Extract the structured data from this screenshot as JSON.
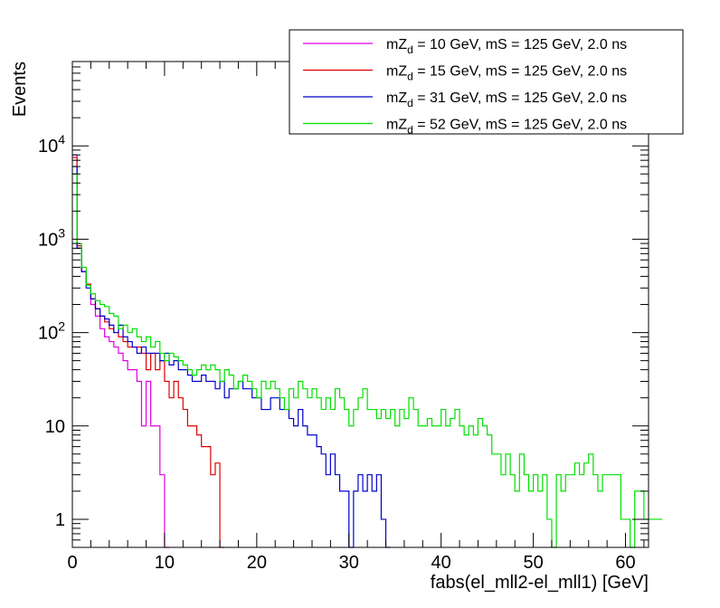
{
  "chart_data": {
    "type": "histogram",
    "title": "",
    "xlabel": "fabs(el_mll2-el_mll1) [GeV]",
    "ylabel": "Events",
    "xlim": [
      0,
      62.5
    ],
    "ylim": [
      0.5,
      80000
    ],
    "yscale": "log",
    "grid": false,
    "legend_position": "top-right",
    "bin_width": 0.5,
    "x_ticks": [
      0,
      10,
      20,
      30,
      40,
      50,
      60
    ],
    "x_tick_labels": [
      "0",
      "10",
      "20",
      "30",
      "40",
      "50",
      "60"
    ],
    "y_ticks": [
      {
        "value": 1,
        "base": "1",
        "exp": ""
      },
      {
        "value": 10,
        "base": "10",
        "exp": ""
      },
      {
        "value": 100,
        "base": "10",
        "exp": "2"
      },
      {
        "value": 1000,
        "base": "10",
        "exp": "3"
      },
      {
        "value": 10000,
        "base": "10",
        "exp": "4"
      }
    ],
    "series": [
      {
        "name": "mZ_d = 10 GeV, mS = 125 GeV, 2.0 ns",
        "legend_main": "mZ",
        "legend_sub": "d",
        "legend_rest": " = 10 GeV, mS = 125 GeV, 2.0 ns",
        "color": "#e000e0",
        "values": [
          8000,
          800,
          450,
          320,
          200,
          150,
          110,
          90,
          80,
          70,
          60,
          50,
          40,
          40,
          30,
          10,
          30,
          10,
          10,
          3,
          0
        ]
      },
      {
        "name": "mZ_d = 15 GeV, mS = 125 GeV, 2.0 ns",
        "legend_main": "mZ",
        "legend_sub": "d",
        "legend_rest": " = 15 GeV, mS = 125 GeV, 2.0 ns",
        "color": "#dd0000",
        "values": [
          7500,
          850,
          450,
          330,
          230,
          180,
          150,
          130,
          110,
          100,
          90,
          80,
          70,
          70,
          70,
          60,
          40,
          60,
          40,
          50,
          30,
          20,
          30,
          20,
          15,
          10,
          10,
          8,
          6,
          6,
          3,
          4,
          0
        ]
      },
      {
        "name": "mZ_d = 31 GeV, mS = 125 GeV, 2.0 ns",
        "legend_main": "mZ",
        "legend_sub": "d",
        "legend_rest": " = 31 GeV, mS = 125 GeV, 2.0 ns",
        "color": "#0000cc",
        "values": [
          6000,
          800,
          450,
          300,
          230,
          180,
          150,
          140,
          120,
          100,
          120,
          90,
          80,
          70,
          60,
          70,
          60,
          60,
          60,
          50,
          60,
          45,
          50,
          40,
          40,
          35,
          30,
          30,
          35,
          30,
          30,
          25,
          30,
          20,
          25,
          25,
          30,
          25,
          25,
          20,
          20,
          15,
          15,
          20,
          20,
          15,
          15,
          12,
          10,
          15,
          10,
          8,
          8,
          6,
          5,
          3,
          5,
          3,
          2,
          2,
          0,
          2,
          3,
          2,
          3,
          2,
          3,
          1,
          0
        ]
      },
      {
        "name": "mZ_d = 52 GeV, mS = 125 GeV, 2.0 ns",
        "legend_main": "mZ",
        "legend_sub": "d",
        "legend_rest": " = 52 GeV, mS = 125 GeV, 2.0 ns",
        "color": "#00e000",
        "values": [
          5000,
          900,
          500,
          320,
          260,
          220,
          200,
          190,
          160,
          150,
          110,
          120,
          100,
          110,
          90,
          80,
          90,
          70,
          80,
          60,
          50,
          60,
          55,
          50,
          45,
          40,
          35,
          40,
          45,
          40,
          45,
          40,
          30,
          40,
          35,
          25,
          30,
          35,
          30,
          25,
          20,
          30,
          25,
          30,
          25,
          20,
          15,
          25,
          20,
          30,
          25,
          20,
          25,
          20,
          15,
          20,
          15,
          25,
          20,
          15,
          10,
          15,
          20,
          25,
          15,
          15,
          12,
          15,
          12,
          15,
          10,
          15,
          12,
          20,
          15,
          10,
          10,
          12,
          10,
          10,
          15,
          10,
          12,
          15,
          10,
          8,
          10,
          8,
          12,
          10,
          8,
          5,
          5,
          3,
          5,
          3,
          2,
          5,
          3,
          2,
          3,
          2,
          3,
          1,
          0,
          3,
          2,
          3,
          3,
          4,
          3,
          4,
          5,
          3,
          2,
          3,
          3,
          3,
          3,
          1,
          1,
          0,
          2,
          2,
          1,
          1,
          1,
          1
        ]
      }
    ]
  }
}
